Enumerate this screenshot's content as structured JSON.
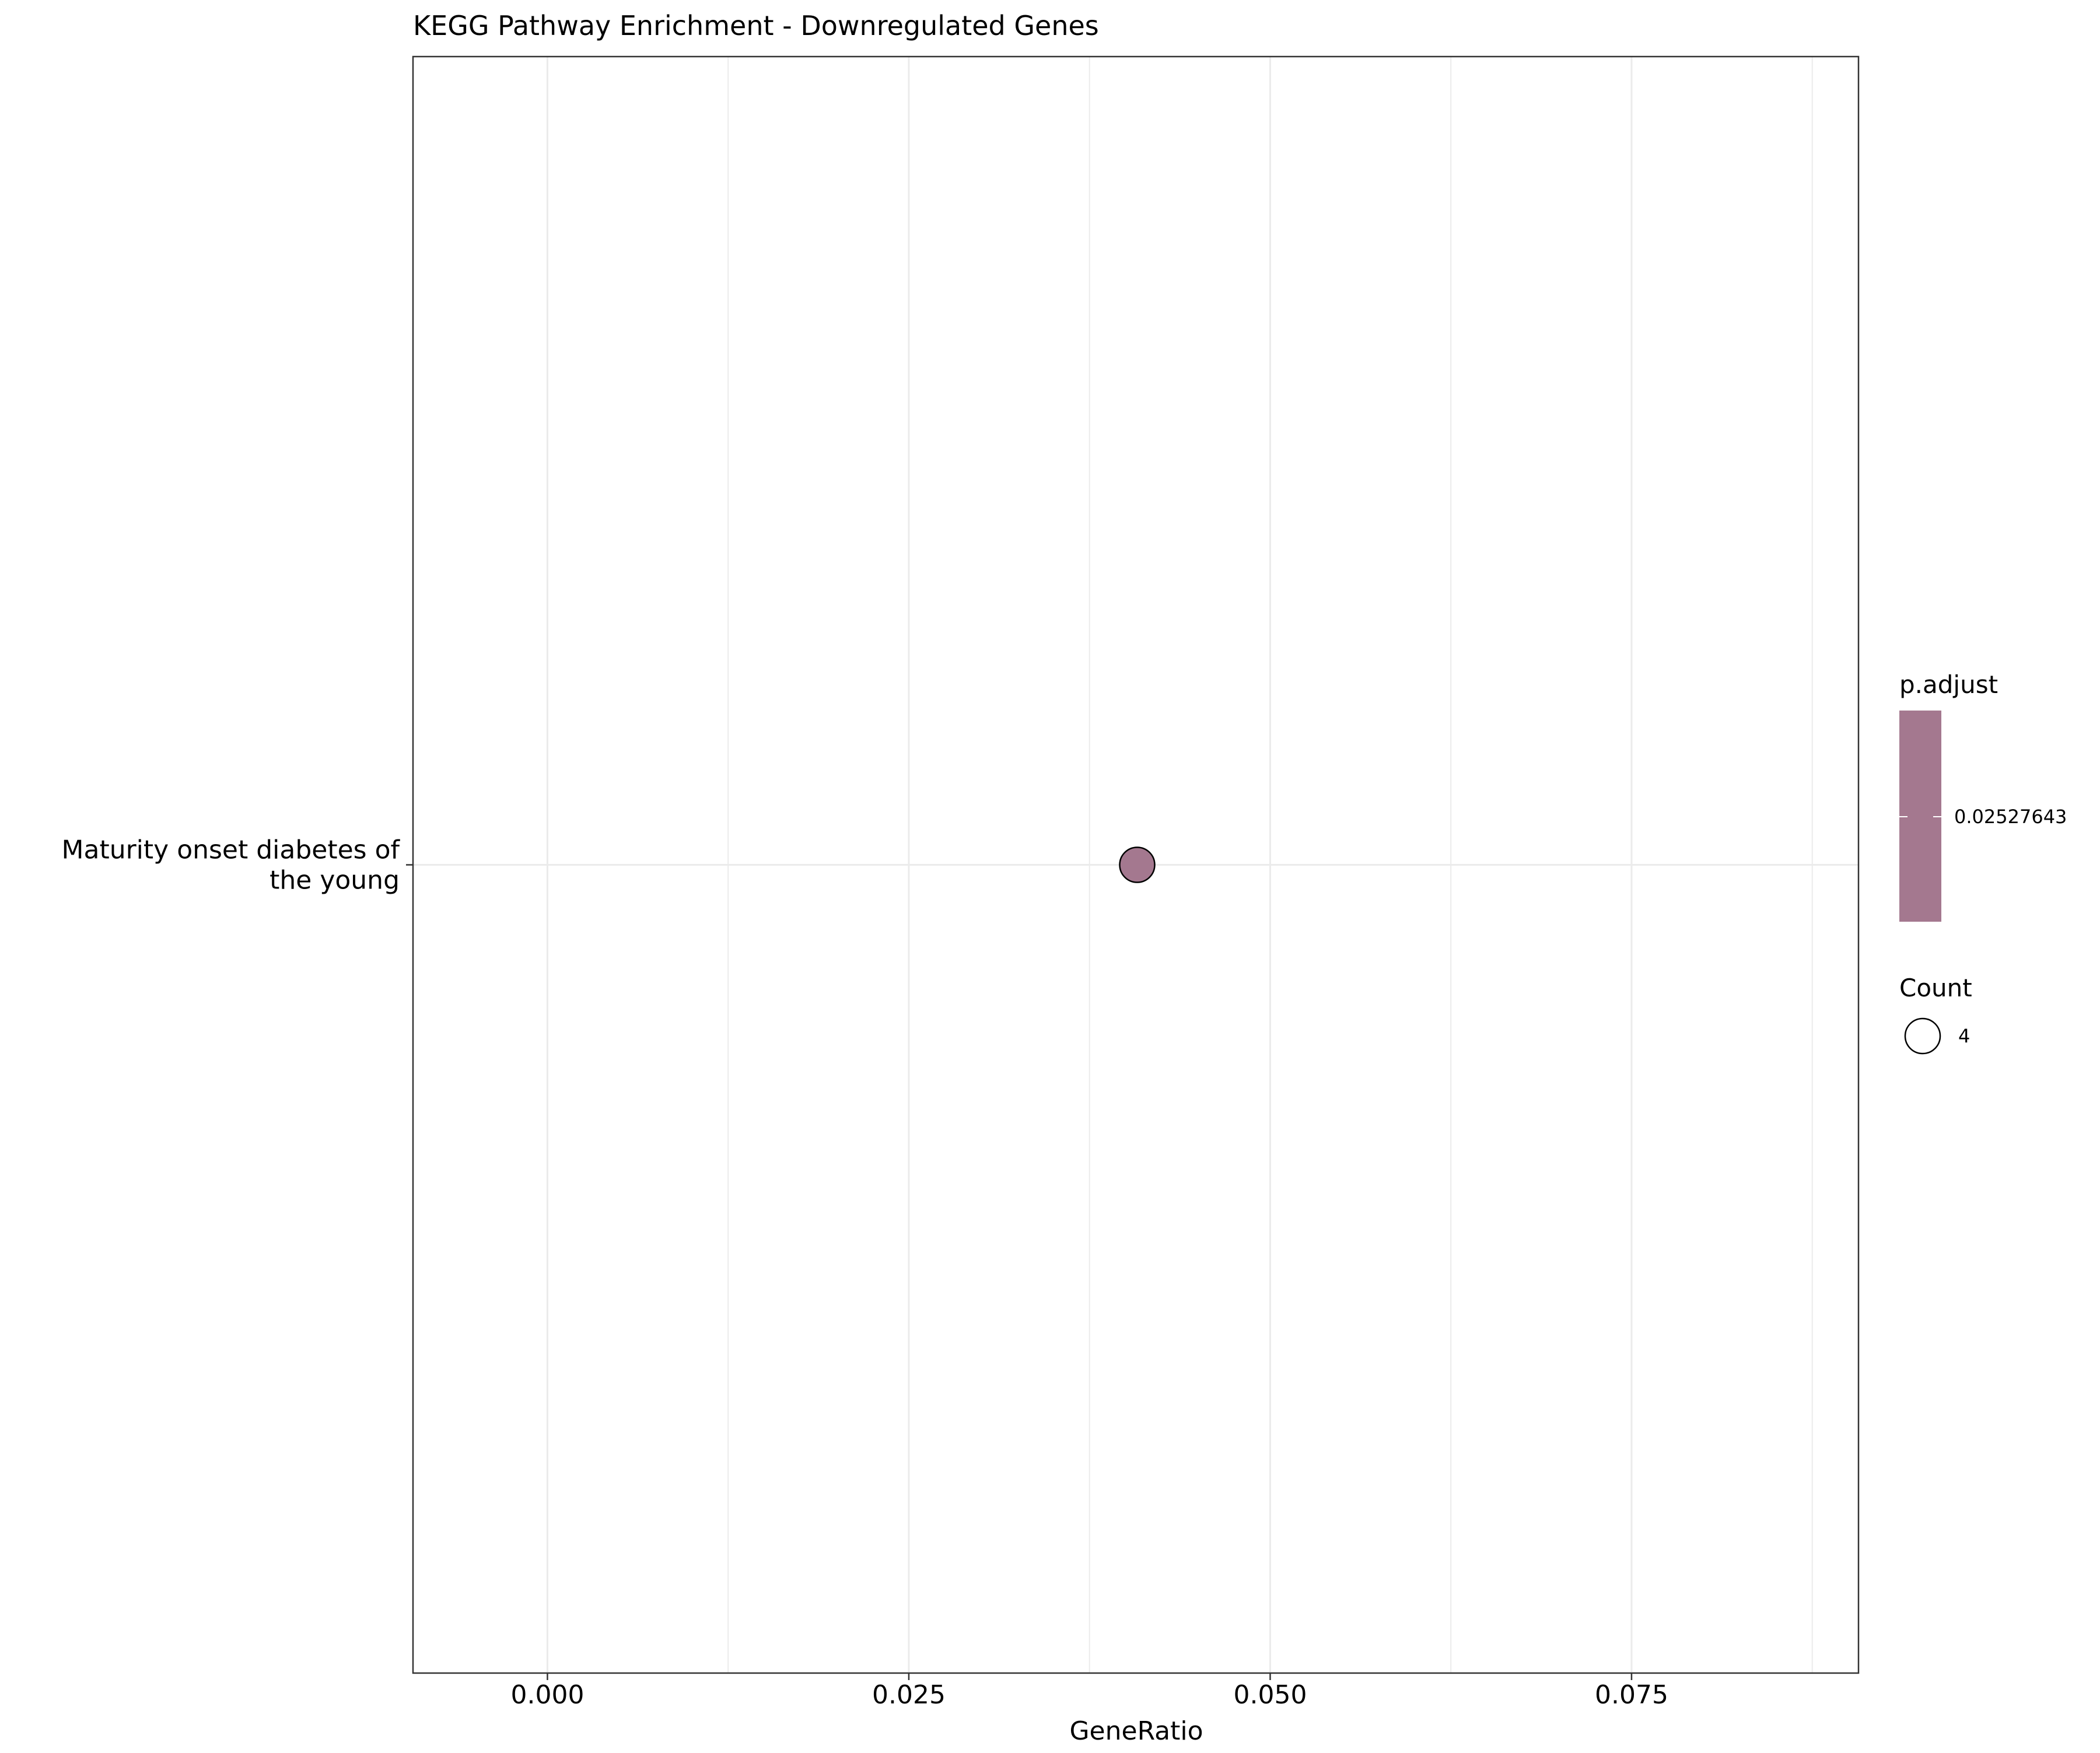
{
  "chart_data": {
    "type": "scatter",
    "title": "KEGG Pathway Enrichment - Downregulated Genes",
    "xlabel": "GeneRatio",
    "ylabel": "",
    "xlim": [
      -0.0093,
      0.0907
    ],
    "xticks": [
      "0.000",
      "0.025",
      "0.050",
      "0.075"
    ],
    "xtick_values": [
      0.0,
      0.025,
      0.05,
      0.075
    ],
    "x_minor_gridlines": [
      0.0125,
      0.0375,
      0.0625,
      0.0875
    ],
    "grid": true,
    "categories": [
      "Maturity onset diabetes of\nthe young"
    ],
    "points": [
      {
        "category": "Maturity onset diabetes of\nthe young",
        "x": 0.0408,
        "count": 4,
        "p_adjust": 0.02527643,
        "color": "#A4788F"
      }
    ],
    "legend": {
      "placement": "right",
      "color_title": "p.adjust",
      "color_ticks": [
        "0.02527643"
      ],
      "color_fill": "#A4788F",
      "size_title": "Count",
      "size_ticks": [
        "4"
      ]
    }
  }
}
